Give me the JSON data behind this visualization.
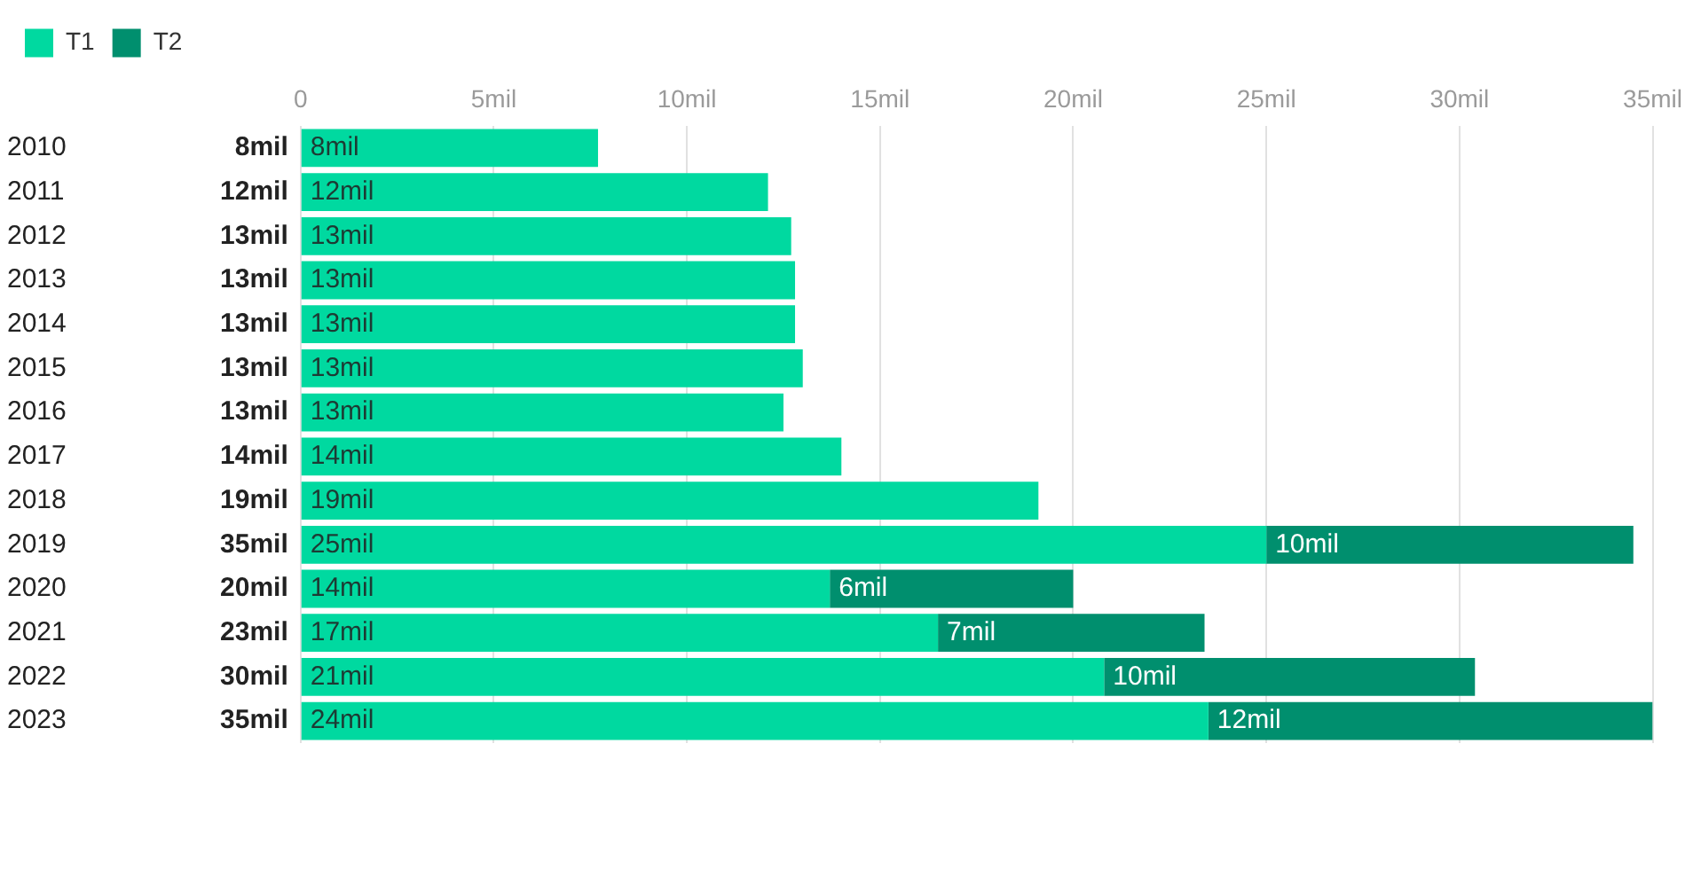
{
  "chart_data": {
    "type": "bar",
    "orientation": "horizontal",
    "stacked": true,
    "categories": [
      "2010",
      "2011",
      "2012",
      "2013",
      "2014",
      "2015",
      "2016",
      "2017",
      "2018",
      "2019",
      "2020",
      "2021",
      "2022",
      "2023"
    ],
    "series": [
      {
        "name": "T1",
        "color": "#00d9a0",
        "values": [
          7.7,
          12.1,
          12.7,
          12.8,
          12.8,
          13.0,
          12.5,
          14.0,
          19.1,
          25.0,
          13.7,
          16.5,
          20.8,
          23.5
        ],
        "value_labels": [
          "8mil",
          "12mil",
          "13mil",
          "13mil",
          "13mil",
          "13mil",
          "13mil",
          "14mil",
          "19mil",
          "25mil",
          "14mil",
          "17mil",
          "21mil",
          "24mil"
        ]
      },
      {
        "name": "T2",
        "color": "#008f6e",
        "values": [
          null,
          null,
          null,
          null,
          null,
          null,
          null,
          null,
          null,
          9.5,
          6.3,
          6.9,
          9.6,
          11.5
        ],
        "value_labels": [
          null,
          null,
          null,
          null,
          null,
          null,
          null,
          null,
          null,
          "10mil",
          "6mil",
          "7mil",
          "10mil",
          "12mil"
        ]
      }
    ],
    "totals": [
      "8mil",
      "12mil",
      "13mil",
      "13mil",
      "13mil",
      "13mil",
      "13mil",
      "14mil",
      "19mil",
      "35mil",
      "20mil",
      "23mil",
      "30mil",
      "35mil"
    ],
    "xlim": [
      0,
      35
    ],
    "xticks": [
      0,
      {
        "value": 5,
        "label": "5mil"
      },
      {
        "value": 10,
        "label": "10mil"
      },
      {
        "value": 15,
        "label": "15mil"
      },
      {
        "value": 20,
        "label": "20mil"
      },
      {
        "value": 25,
        "label": "25mil"
      },
      {
        "value": 30,
        "label": "30mil"
      },
      {
        "value": 35,
        "label": "35mil"
      }
    ],
    "grid": "x",
    "legend": "top left"
  }
}
